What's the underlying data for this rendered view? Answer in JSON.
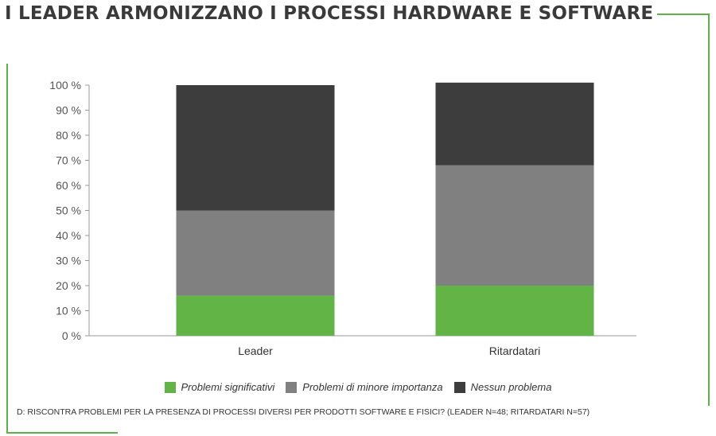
{
  "header": {
    "title": "I LEADER ARMONIZZANO I PROCESSI HARDWARE E SOFTWARE"
  },
  "colors": {
    "accent": "#5cb247",
    "text": "#333333",
    "axis": "#999999"
  },
  "chart_data": {
    "type": "bar",
    "stacked": true,
    "categories": [
      "Leader",
      "Ritardatari"
    ],
    "series": [
      {
        "name": "Problemi significativi",
        "values": [
          16,
          20
        ],
        "color": "#62b447"
      },
      {
        "name": "Problemi di minore importanza",
        "values": [
          34,
          48
        ],
        "color": "#808080"
      },
      {
        "name": "Nessun problema",
        "values": [
          50,
          33
        ],
        "color": "#3d3d3d"
      }
    ],
    "y_ticks": [
      "100 %",
      "90 %",
      "80 %",
      "70 %",
      "60 %",
      "50 %",
      "40 %",
      "30 %",
      "20 %",
      "10 %",
      "0 %"
    ],
    "ylim": [
      0,
      100
    ],
    "grid": false,
    "legend_position": "bottom"
  },
  "footnote": "D: RISCONTRA PROBLEMI PER LA PRESENZA DI PROCESSI DIVERSI PER PRODOTTI SOFTWARE E FISICI? (LEADER N=48; RITARDATARI N=57)"
}
